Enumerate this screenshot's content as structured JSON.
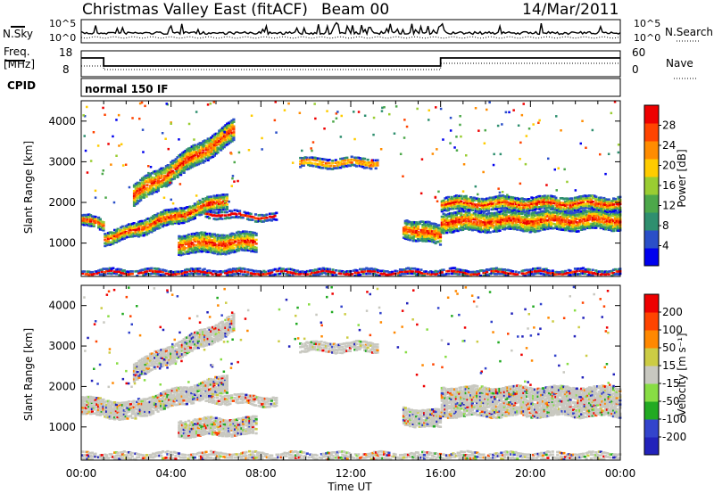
{
  "header": {
    "station": "Christmas Valley East (fitACF)",
    "beam": "Beam 00",
    "date": "14/Mar/2011"
  },
  "top_panels": {
    "nsky_label": "N.Sky",
    "nsky_ticks": [
      "10^5",
      "10^0"
    ],
    "nsearch_label": "N.Search",
    "nsearch_ticks": [
      "10^5",
      "10^0"
    ],
    "freq_label": "Freq.",
    "freq_unit": "[MHz]",
    "freq_ticks": [
      18,
      8
    ],
    "nave_label": "Nave",
    "nave_ticks": [
      60,
      0
    ],
    "cpid_label": "CPID",
    "cpid_text": "normal 150 IF"
  },
  "colors": {
    "power": [
      "#0000ee",
      "#2a4fc8",
      "#2f8f6f",
      "#4da84a",
      "#9acd32",
      "#ffcc00",
      "#ff8c00",
      "#ff4400",
      "#ee0000"
    ],
    "velocity": [
      "#2222bb",
      "#3344cc",
      "#22aa22",
      "#88dd44",
      "#c8c8c0",
      "#cccc44",
      "#ff8800",
      "#ff4400",
      "#ee0000"
    ]
  },
  "chart_data": [
    {
      "type": "heatmap",
      "name": "power",
      "ylabel": "Slant Range [km]",
      "ylim": [
        180,
        4500
      ],
      "yticks": [
        1000,
        2000,
        3000,
        4000
      ],
      "xlim": [
        0,
        24
      ],
      "colorbar_label": "Power [dB]",
      "colorbar_ticks": [
        28,
        24,
        20,
        16,
        12,
        8,
        4
      ],
      "bands": [
        {
          "x": [
            0.0,
            1.0
          ],
          "y_center": 1600,
          "y_center_end": 1450,
          "thickness": 250
        },
        {
          "x": [
            1.0,
            2.5
          ],
          "y_center": 1150,
          "y_center_end": 1350,
          "thickness": 300
        },
        {
          "x": [
            2.5,
            6.5
          ],
          "y_center": 1400,
          "y_center_end": 2100,
          "thickness": 350
        },
        {
          "x": [
            4.3,
            7.8
          ],
          "y_center": 1000,
          "y_center_end": 1050,
          "thickness": 450
        },
        {
          "x": [
            5.5,
            8.7
          ],
          "y_center": 1750,
          "y_center_end": 1650,
          "thickness": 150
        },
        {
          "x": [
            2.3,
            6.8
          ],
          "y_center": 2200,
          "y_center_end": 3800,
          "thickness": 500
        },
        {
          "x": [
            9.7,
            13.2
          ],
          "y_center": 3000,
          "y_center_end": 3000,
          "thickness": 200
        },
        {
          "x": [
            14.3,
            16.0
          ],
          "y_center": 1400,
          "y_center_end": 1200,
          "thickness": 450
        },
        {
          "x": [
            16.0,
            24.0
          ],
          "y_center": 1550,
          "y_center_end": 1600,
          "thickness": 450
        },
        {
          "x": [
            16.0,
            24.0
          ],
          "y_center": 2000,
          "y_center_end": 2000,
          "thickness": 300
        },
        {
          "x": [
            0.0,
            24.0
          ],
          "y_center": 300,
          "y_center_end": 300,
          "thickness": 120
        }
      ]
    },
    {
      "type": "heatmap",
      "name": "velocity",
      "xlabel": "Time UT",
      "ylabel": "Slant Range [km]",
      "ylim": [
        180,
        4500
      ],
      "yticks": [
        1000,
        2000,
        3000,
        4000
      ],
      "xlim": [
        0,
        24
      ],
      "xticks": [
        "00:00",
        "04:00",
        "08:00",
        "12:00",
        "16:00",
        "20:00",
        "00:00"
      ],
      "colorbar_label": "Velocity [m s⁻¹]",
      "colorbar_ticks": [
        200,
        100,
        50,
        15,
        -15,
        -50,
        -100,
        -200
      ],
      "bands": [
        {
          "x": [
            0.0,
            2.5
          ],
          "y_center": 1550,
          "y_center_end": 1400,
          "thickness": 400
        },
        {
          "x": [
            2.5,
            6.5
          ],
          "y_center": 1500,
          "y_center_end": 2100,
          "thickness": 400
        },
        {
          "x": [
            4.3,
            7.8
          ],
          "y_center": 1000,
          "y_center_end": 1050,
          "thickness": 400
        },
        {
          "x": [
            5.5,
            8.7
          ],
          "y_center": 1750,
          "y_center_end": 1650,
          "thickness": 200
        },
        {
          "x": [
            2.3,
            6.8
          ],
          "y_center": 2400,
          "y_center_end": 3600,
          "thickness": 400
        },
        {
          "x": [
            9.7,
            13.2
          ],
          "y_center": 3000,
          "y_center_end": 3000,
          "thickness": 200
        },
        {
          "x": [
            14.3,
            16.0
          ],
          "y_center": 1300,
          "y_center_end": 1200,
          "thickness": 400
        },
        {
          "x": [
            16.0,
            24.0
          ],
          "y_center": 1650,
          "y_center_end": 1650,
          "thickness": 700
        },
        {
          "x": [
            0.0,
            24.0
          ],
          "y_center": 300,
          "y_center_end": 300,
          "thickness": 150
        }
      ]
    }
  ]
}
